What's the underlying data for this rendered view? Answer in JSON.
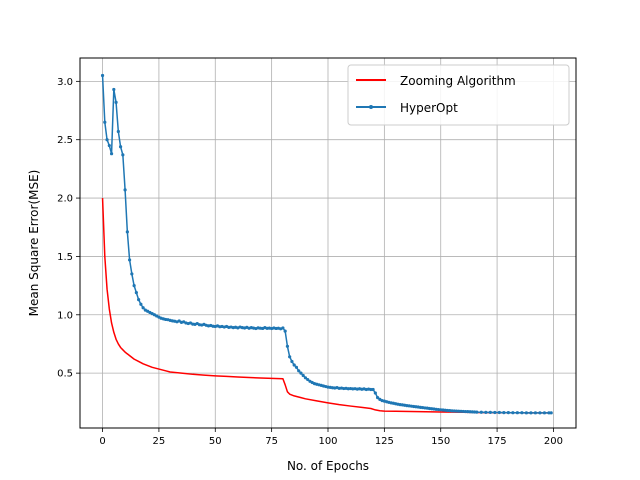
{
  "chart_data": {
    "type": "line",
    "title": "",
    "xlabel": "No. of Epochs",
    "ylabel": "Mean Square Error(MSE)",
    "xlim": [
      -10,
      210
    ],
    "ylim": [
      0.03,
      3.2
    ],
    "xticks": [
      0,
      25,
      50,
      75,
      100,
      125,
      150,
      175,
      200
    ],
    "yticks": [
      0.5,
      1.0,
      1.5,
      2.0,
      2.5,
      3.0
    ],
    "xtick_labels": [
      "0",
      "25",
      "50",
      "75",
      "100",
      "125",
      "150",
      "175",
      "200"
    ],
    "ytick_labels": [
      "0.5",
      "1.0",
      "1.5",
      "2.0",
      "2.5",
      "3.0"
    ],
    "grid": true,
    "legend_position": "top-right",
    "series": [
      {
        "name": "Zooming Algorithm",
        "color": "#ff0000",
        "marker": false,
        "points": [
          [
            0,
            2.0
          ],
          [
            1,
            1.5
          ],
          [
            2,
            1.22
          ],
          [
            3,
            1.05
          ],
          [
            4,
            0.93
          ],
          [
            5,
            0.85
          ],
          [
            6,
            0.79
          ],
          [
            7,
            0.75
          ],
          [
            8,
            0.72
          ],
          [
            9,
            0.7
          ],
          [
            10,
            0.68
          ],
          [
            12,
            0.65
          ],
          [
            14,
            0.62
          ],
          [
            16,
            0.6
          ],
          [
            18,
            0.58
          ],
          [
            20,
            0.565
          ],
          [
            22,
            0.55
          ],
          [
            25,
            0.535
          ],
          [
            28,
            0.52
          ],
          [
            30,
            0.51
          ],
          [
            35,
            0.5
          ],
          [
            40,
            0.49
          ],
          [
            45,
            0.483
          ],
          [
            50,
            0.477
          ],
          [
            55,
            0.472
          ],
          [
            60,
            0.467
          ],
          [
            65,
            0.463
          ],
          [
            70,
            0.458
          ],
          [
            75,
            0.455
          ],
          [
            80,
            0.452
          ],
          [
            81,
            0.4
          ],
          [
            82,
            0.34
          ],
          [
            83,
            0.32
          ],
          [
            85,
            0.305
          ],
          [
            88,
            0.29
          ],
          [
            90,
            0.28
          ],
          [
            95,
            0.262
          ],
          [
            100,
            0.245
          ],
          [
            105,
            0.23
          ],
          [
            110,
            0.218
          ],
          [
            115,
            0.207
          ],
          [
            119,
            0.197
          ],
          [
            121,
            0.185
          ],
          [
            123,
            0.178
          ],
          [
            125,
            0.175
          ],
          [
            130,
            0.173
          ],
          [
            140,
            0.17
          ],
          [
            150,
            0.167
          ],
          [
            160,
            0.165
          ],
          [
            165,
            0.163
          ],
          [
            170,
            0.162
          ],
          [
            180,
            0.161
          ],
          [
            190,
            0.16
          ],
          [
            199,
            0.16
          ]
        ]
      },
      {
        "name": "HyperOpt",
        "color": "#1f77b4",
        "marker": true,
        "points": [
          [
            0,
            3.05
          ],
          [
            1,
            2.65
          ],
          [
            2,
            2.5
          ],
          [
            3,
            2.45
          ],
          [
            4,
            2.38
          ],
          [
            5,
            2.93
          ],
          [
            6,
            2.82
          ],
          [
            7,
            2.57
          ],
          [
            8,
            2.44
          ],
          [
            9,
            2.37
          ],
          [
            10,
            2.07
          ],
          [
            11,
            1.71
          ],
          [
            12,
            1.47
          ],
          [
            13,
            1.35
          ],
          [
            14,
            1.25
          ],
          [
            15,
            1.19
          ],
          [
            16,
            1.13
          ],
          [
            17,
            1.09
          ],
          [
            18,
            1.06
          ],
          [
            19,
            1.04
          ],
          [
            20,
            1.03
          ],
          [
            21,
            1.02
          ],
          [
            22,
            1.01
          ],
          [
            23,
            1.0
          ],
          [
            24,
            0.99
          ],
          [
            25,
            0.98
          ],
          [
            26,
            0.97
          ],
          [
            27,
            0.965
          ],
          [
            28,
            0.96
          ],
          [
            29,
            0.958
          ],
          [
            30,
            0.952
          ],
          [
            31,
            0.948
          ],
          [
            32,
            0.945
          ],
          [
            33,
            0.94
          ],
          [
            34,
            0.947
          ],
          [
            35,
            0.935
          ],
          [
            36,
            0.94
          ],
          [
            37,
            0.93
          ],
          [
            38,
            0.925
          ],
          [
            39,
            0.93
          ],
          [
            40,
            0.92
          ],
          [
            41,
            0.918
          ],
          [
            42,
            0.925
          ],
          [
            43,
            0.915
          ],
          [
            44,
            0.912
          ],
          [
            45,
            0.918
          ],
          [
            46,
            0.91
          ],
          [
            47,
            0.905
          ],
          [
            48,
            0.908
          ],
          [
            49,
            0.902
          ],
          [
            50,
            0.9
          ],
          [
            51,
            0.905
          ],
          [
            52,
            0.898
          ],
          [
            53,
            0.9
          ],
          [
            54,
            0.895
          ],
          [
            55,
            0.9
          ],
          [
            56,
            0.892
          ],
          [
            57,
            0.895
          ],
          [
            58,
            0.89
          ],
          [
            59,
            0.893
          ],
          [
            60,
            0.888
          ],
          [
            61,
            0.895
          ],
          [
            62,
            0.89
          ],
          [
            63,
            0.887
          ],
          [
            64,
            0.892
          ],
          [
            65,
            0.885
          ],
          [
            66,
            0.89
          ],
          [
            67,
            0.886
          ],
          [
            68,
            0.882
          ],
          [
            69,
            0.888
          ],
          [
            70,
            0.885
          ],
          [
            71,
            0.883
          ],
          [
            72,
            0.89
          ],
          [
            73,
            0.884
          ],
          [
            74,
            0.886
          ],
          [
            75,
            0.882
          ],
          [
            76,
            0.887
          ],
          [
            77,
            0.883
          ],
          [
            78,
            0.885
          ],
          [
            79,
            0.88
          ],
          [
            80,
            0.887
          ],
          [
            81,
            0.86
          ],
          [
            82,
            0.73
          ],
          [
            83,
            0.64
          ],
          [
            84,
            0.6
          ],
          [
            85,
            0.57
          ],
          [
            86,
            0.55
          ],
          [
            87,
            0.52
          ],
          [
            88,
            0.5
          ],
          [
            89,
            0.48
          ],
          [
            90,
            0.46
          ],
          [
            91,
            0.445
          ],
          [
            92,
            0.43
          ],
          [
            93,
            0.42
          ],
          [
            94,
            0.41
          ],
          [
            95,
            0.405
          ],
          [
            96,
            0.4
          ],
          [
            97,
            0.395
          ],
          [
            98,
            0.39
          ],
          [
            99,
            0.385
          ],
          [
            100,
            0.38
          ],
          [
            101,
            0.378
          ],
          [
            102,
            0.375
          ],
          [
            103,
            0.373
          ],
          [
            104,
            0.376
          ],
          [
            105,
            0.37
          ],
          [
            106,
            0.372
          ],
          [
            107,
            0.368
          ],
          [
            108,
            0.37
          ],
          [
            109,
            0.366
          ],
          [
            110,
            0.368
          ],
          [
            111,
            0.365
          ],
          [
            112,
            0.367
          ],
          [
            113,
            0.363
          ],
          [
            114,
            0.366
          ],
          [
            115,
            0.362
          ],
          [
            116,
            0.365
          ],
          [
            117,
            0.36
          ],
          [
            118,
            0.363
          ],
          [
            119,
            0.36
          ],
          [
            120,
            0.36
          ],
          [
            121,
            0.33
          ],
          [
            122,
            0.29
          ],
          [
            123,
            0.275
          ],
          [
            124,
            0.265
          ],
          [
            125,
            0.26
          ],
          [
            126,
            0.255
          ],
          [
            127,
            0.25
          ],
          [
            128,
            0.245
          ],
          [
            129,
            0.242
          ],
          [
            130,
            0.238
          ],
          [
            131,
            0.234
          ],
          [
            132,
            0.23
          ],
          [
            133,
            0.228
          ],
          [
            134,
            0.225
          ],
          [
            135,
            0.222
          ],
          [
            136,
            0.22
          ],
          [
            137,
            0.217
          ],
          [
            138,
            0.214
          ],
          [
            139,
            0.212
          ],
          [
            140,
            0.21
          ],
          [
            141,
            0.207
          ],
          [
            142,
            0.205
          ],
          [
            143,
            0.202
          ],
          [
            144,
            0.2
          ],
          [
            145,
            0.197
          ],
          [
            146,
            0.195
          ],
          [
            147,
            0.193
          ],
          [
            148,
            0.19
          ],
          [
            149,
            0.188
          ],
          [
            150,
            0.186
          ],
          [
            151,
            0.184
          ],
          [
            152,
            0.182
          ],
          [
            153,
            0.18
          ],
          [
            154,
            0.179
          ],
          [
            155,
            0.177
          ],
          [
            156,
            0.176
          ],
          [
            157,
            0.175
          ],
          [
            158,
            0.174
          ],
          [
            159,
            0.173
          ],
          [
            160,
            0.172
          ],
          [
            161,
            0.171
          ],
          [
            162,
            0.17
          ],
          [
            163,
            0.169
          ],
          [
            164,
            0.168
          ],
          [
            165,
            0.167
          ],
          [
            166,
            0.166
          ],
          [
            168,
            0.165
          ],
          [
            170,
            0.164
          ],
          [
            172,
            0.164
          ],
          [
            174,
            0.163
          ],
          [
            176,
            0.163
          ],
          [
            178,
            0.162
          ],
          [
            180,
            0.162
          ],
          [
            182,
            0.161
          ],
          [
            184,
            0.161
          ],
          [
            186,
            0.161
          ],
          [
            188,
            0.16
          ],
          [
            190,
            0.16
          ],
          [
            192,
            0.16
          ],
          [
            194,
            0.16
          ],
          [
            196,
            0.16
          ],
          [
            198,
            0.16
          ],
          [
            199,
            0.16
          ]
        ]
      }
    ]
  }
}
